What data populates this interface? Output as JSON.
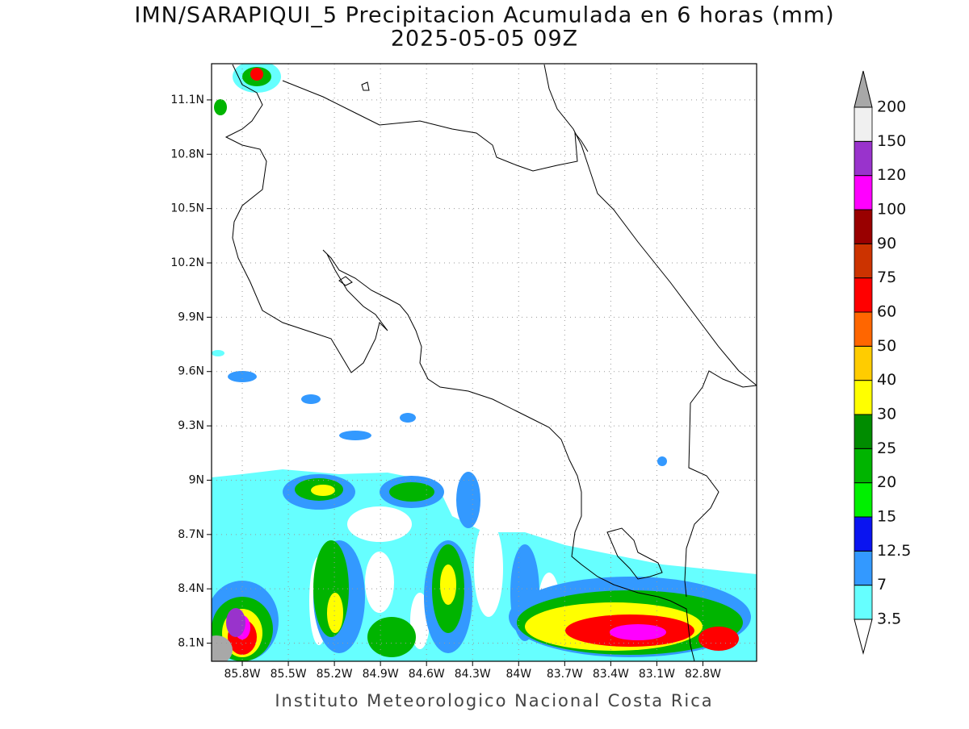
{
  "title": "IMN/SARAPIQUI_5 Precipitacion Acumulada en 6 horas (mm)",
  "subtitle": "2025-05-05 09Z",
  "footer": "Instituto Meteorologico Nacional Costa Rica",
  "map": {
    "xlim": [
      -86.0,
      -82.45
    ],
    "ylim": [
      8.0,
      11.3
    ],
    "grid": true,
    "xticks": [
      {
        "value": -85.8,
        "label": "85.8W"
      },
      {
        "value": -85.5,
        "label": "85.5W"
      },
      {
        "value": -85.2,
        "label": "85.2W"
      },
      {
        "value": -84.9,
        "label": "84.9W"
      },
      {
        "value": -84.6,
        "label": "84.6W"
      },
      {
        "value": -84.3,
        "label": "84.3W"
      },
      {
        "value": -84.0,
        "label": "84W"
      },
      {
        "value": -83.7,
        "label": "83.7W"
      },
      {
        "value": -83.4,
        "label": "83.4W"
      },
      {
        "value": -83.1,
        "label": "83.1W"
      },
      {
        "value": -82.8,
        "label": "82.8W"
      }
    ],
    "yticks": [
      {
        "value": 8.1,
        "label": "8.1N"
      },
      {
        "value": 8.4,
        "label": "8.4N"
      },
      {
        "value": 8.7,
        "label": "8.7N"
      },
      {
        "value": 9.0,
        "label": "9N"
      },
      {
        "value": 9.3,
        "label": "9.3N"
      },
      {
        "value": 9.6,
        "label": "9.6N"
      },
      {
        "value": 9.9,
        "label": "9.9N"
      },
      {
        "value": 10.2,
        "label": "10.2N"
      },
      {
        "value": 10.5,
        "label": "10.5N"
      },
      {
        "value": 10.8,
        "label": "10.8N"
      },
      {
        "value": 11.1,
        "label": "11.1N"
      }
    ]
  },
  "colorbar": {
    "levels": [
      3.5,
      7,
      12.5,
      15,
      20,
      25,
      30,
      40,
      50,
      60,
      75,
      90,
      100,
      120,
      150,
      200
    ],
    "colors": [
      "#66ffff",
      "#3399ff",
      "#0a14f0",
      "#00f000",
      "#00b400",
      "#008c00",
      "#ffff00",
      "#ffcc00",
      "#ff6600",
      "#ff0000",
      "#cc3300",
      "#990000",
      "#ff00ff",
      "#9933cc",
      "#f0f0f0"
    ],
    "over_color": "#a8a8a8",
    "under_color": "#ffffff"
  }
}
